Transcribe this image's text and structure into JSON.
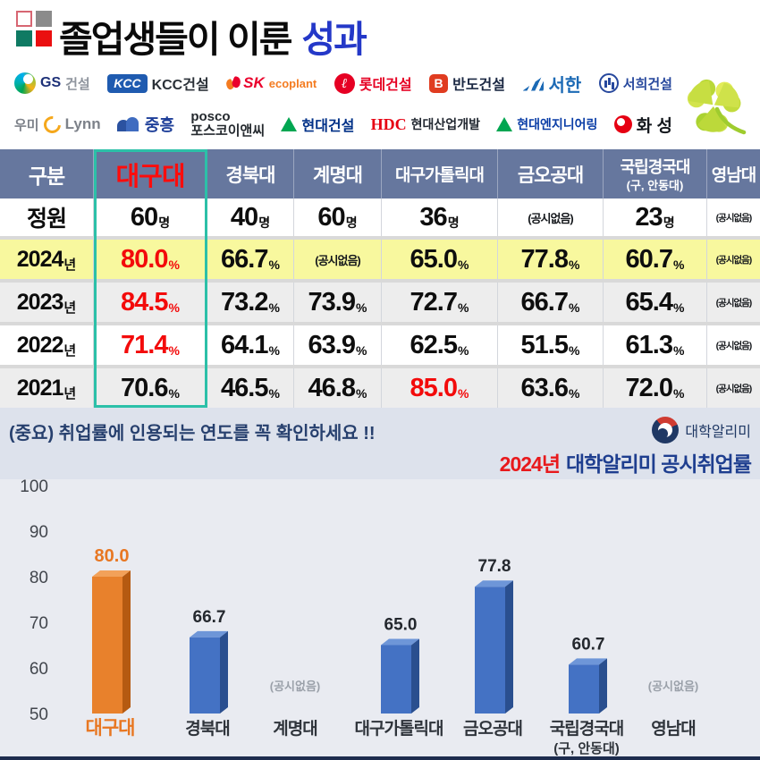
{
  "header": {
    "title_black": "졸업생들이 이룬",
    "title_accent": "성과",
    "accent_color": "#2438c8"
  },
  "sponsors": {
    "row1": [
      {
        "name": "gs-construction",
        "segments": [
          {
            "ic": "gs-swirl-icon"
          },
          {
            "t": "GS",
            "c": "#1e3178",
            "sz": 16
          },
          {
            "t": "건설",
            "c": "#8f959e",
            "sz": 15
          }
        ]
      },
      {
        "name": "kcc-construction",
        "segments": [
          {
            "t": "KCC",
            "cls": "kcc-box"
          },
          {
            "t": "KCC건설",
            "c": "#2b3138",
            "sz": 16
          }
        ]
      },
      {
        "name": "sk-ecoplant",
        "segments": [
          {
            "ic": "sk-butterfly-icon"
          },
          {
            "t": "SK",
            "c": "#ea002c",
            "sz": 17,
            "it": 1
          },
          {
            "t": "ecoplant",
            "c": "#f47b20",
            "sz": 13
          }
        ]
      },
      {
        "name": "lotte-construction",
        "segments": [
          {
            "t": "ℓ",
            "cls": "lotte-circle"
          },
          {
            "t": "롯데건설",
            "c": "#e60023",
            "sz": 16
          }
        ]
      },
      {
        "name": "bando-construction",
        "segments": [
          {
            "t": "B",
            "cls": "bando-box"
          },
          {
            "t": "반도건설",
            "c": "#1a2742",
            "sz": 16
          }
        ]
      },
      {
        "name": "seohan",
        "segments": [
          {
            "ic": "seohan-waves-icon"
          },
          {
            "t": "서한",
            "c": "#1c6ab5",
            "sz": 20
          }
        ]
      },
      {
        "name": "seohee-construction",
        "segments": [
          {
            "ic": "seohee-building-icon"
          },
          {
            "t": "서희건설",
            "c": "#27489d",
            "sz": 15
          }
        ]
      }
    ],
    "row2": [
      {
        "name": "woomi-lynn",
        "segments": [
          {
            "t": "우미",
            "c": "#7d828a",
            "sz": 15
          },
          {
            "ic": "woomi-c-icon"
          },
          {
            "t": "Lynn",
            "c": "#7d828a",
            "sz": 17
          }
        ]
      },
      {
        "name": "jungheung",
        "segments": [
          {
            "ic": "jungheung-arch-icon"
          },
          {
            "t": "중흥",
            "c": "#1e3f99",
            "sz": 18
          }
        ]
      },
      {
        "name": "posco-enc",
        "stack": true,
        "segments": [
          {
            "t": "posco",
            "c": "#24292e",
            "sz": 15,
            "nl": 1
          },
          {
            "t": "포스코이앤씨",
            "c": "#24292e",
            "sz": 15
          }
        ]
      },
      {
        "name": "hyundai-construction",
        "segments": [
          {
            "ic": "hyundai-triangle-icon"
          },
          {
            "t": "현대건설",
            "c": "#003087",
            "sz": 16
          }
        ]
      },
      {
        "name": "hdc-hyundai-development",
        "segments": [
          {
            "t": "HDC",
            "c": "#e60012",
            "sz": 18,
            "serif": 1
          },
          {
            "t": "현대산업개발",
            "c": "#222831",
            "sz": 14
          }
        ]
      },
      {
        "name": "hyundai-engineering",
        "segments": [
          {
            "ic": "hyundai-triangle-icon"
          },
          {
            "t": "현대엔지니어링",
            "c": "#0a3da6",
            "sz": 14
          }
        ]
      },
      {
        "name": "hwasung",
        "segments": [
          {
            "ic": "hwasung-swirl-icon"
          },
          {
            "t": "화 성",
            "c": "#14181d",
            "sz": 19
          }
        ]
      }
    ]
  },
  "table": {
    "corner": "구분",
    "columns": [
      {
        "key": "daegu",
        "label": "대구대",
        "red": true
      },
      {
        "key": "kyungpook",
        "label": "경북대"
      },
      {
        "key": "keimyung",
        "label": "계명대"
      },
      {
        "key": "dcu",
        "label": "대구가톨릭대"
      },
      {
        "key": "kumoh",
        "label": "금오공대"
      },
      {
        "key": "andong",
        "label": "국립경국대",
        "sub": "(구, 안동대)"
      },
      {
        "key": "yeungnam",
        "label": "영남대"
      }
    ],
    "rows": [
      {
        "label": "정원",
        "suffix": "",
        "cells": [
          {
            "v": "60",
            "u": "명"
          },
          {
            "v": "40",
            "u": "명"
          },
          {
            "v": "60",
            "u": "명"
          },
          {
            "v": "36",
            "u": "명"
          },
          {
            "v": "(공시없음)",
            "na": true
          },
          {
            "v": "23",
            "u": "명"
          },
          {
            "v": "(공시없음)",
            "na": true
          }
        ]
      },
      {
        "label": "2024",
        "suffix": "년",
        "highlight": true,
        "cells": [
          {
            "v": "80.0",
            "u": "%",
            "red": true
          },
          {
            "v": "66.7",
            "u": "%"
          },
          {
            "v": "(공시없음)",
            "na": true
          },
          {
            "v": "65.0",
            "u": "%"
          },
          {
            "v": "77.8",
            "u": "%"
          },
          {
            "v": "60.7",
            "u": "%"
          },
          {
            "v": "(공시없음)",
            "na": true
          }
        ]
      },
      {
        "label": "2023",
        "suffix": "년",
        "shaded": true,
        "cells": [
          {
            "v": "84.5",
            "u": "%",
            "red": true
          },
          {
            "v": "73.2",
            "u": "%"
          },
          {
            "v": "73.9",
            "u": "%"
          },
          {
            "v": "72.7",
            "u": "%"
          },
          {
            "v": "66.7",
            "u": "%"
          },
          {
            "v": "65.4",
            "u": "%"
          },
          {
            "v": "(공시없음)",
            "na": true
          }
        ]
      },
      {
        "label": "2022",
        "suffix": "년",
        "cells": [
          {
            "v": "71.4",
            "u": "%",
            "red": true
          },
          {
            "v": "64.1",
            "u": "%"
          },
          {
            "v": "63.9",
            "u": "%"
          },
          {
            "v": "62.5",
            "u": "%"
          },
          {
            "v": "51.5",
            "u": "%"
          },
          {
            "v": "61.3",
            "u": "%"
          },
          {
            "v": "(공시없음)",
            "na": true
          }
        ]
      },
      {
        "label": "2021",
        "suffix": "년",
        "shaded": true,
        "cells": [
          {
            "v": "70.6",
            "u": "%"
          },
          {
            "v": "46.5",
            "u": "%"
          },
          {
            "v": "46.8",
            "u": "%"
          },
          {
            "v": "85.0",
            "u": "%",
            "red": true
          },
          {
            "v": "63.6",
            "u": "%"
          },
          {
            "v": "72.0",
            "u": "%"
          },
          {
            "v": "(공시없음)",
            "na": true
          }
        ]
      }
    ],
    "highlight_border_color": "#2cc0a8",
    "highlight_row_color": "#f8f89e",
    "header_bg_color": "#66779e"
  },
  "notice": {
    "warning": "(중요) 취업률에 인용되는 연도를 꼭 확인하세요 !!",
    "source_label": "대학알리미"
  },
  "chart_data": {
    "type": "bar",
    "title": "2024년 대학알리미 공시취업률",
    "title_year": "2024년",
    "title_rest": "대학알리미 공시취업률",
    "categories": [
      {
        "key": "daegu",
        "label": "대구대"
      },
      {
        "key": "kyungpook",
        "label": "경북대"
      },
      {
        "key": "keimyung",
        "label": "계명대"
      },
      {
        "key": "dcu",
        "label": "대구가톨릭대"
      },
      {
        "key": "kumoh",
        "label": "금오공대"
      },
      {
        "key": "andong",
        "label": "국립경국대",
        "sub": "(구, 안동대)"
      },
      {
        "key": "yeungnam",
        "label": "영남대"
      }
    ],
    "values": [
      80.0,
      66.7,
      null,
      65.0,
      77.8,
      60.7,
      null
    ],
    "na_label": "(공시없음)",
    "ylim": [
      50,
      100
    ],
    "yticks": [
      100,
      90,
      80,
      70,
      60,
      50
    ],
    "grid": false,
    "legend": false,
    "highlight_index": 0,
    "colors": {
      "bar": "#4472c4",
      "bar_side": "#2a4f8f",
      "bar_top": "#6e96d8",
      "highlight": "#e8812c",
      "highlight_side": "#b55a11",
      "highlight_top": "#f2a159",
      "highlight_label": "#e87722"
    }
  }
}
